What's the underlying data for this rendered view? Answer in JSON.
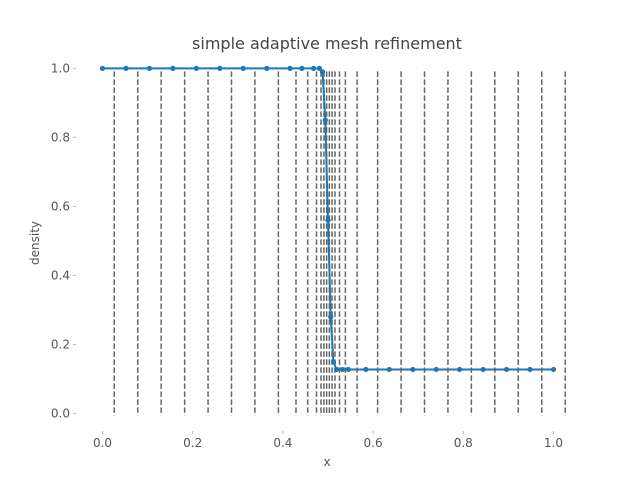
{
  "chart_data": {
    "type": "line",
    "title": "simple adaptive mesh refinement",
    "xlabel": "x",
    "ylabel": "density",
    "xlim": [
      -0.05,
      1.05
    ],
    "ylim": [
      -0.03,
      1.03
    ],
    "xticks": [
      0.0,
      0.2,
      0.4,
      0.6,
      0.8,
      1.0
    ],
    "xtick_labels": [
      "0.0",
      "0.2",
      "0.4",
      "0.6",
      "0.8",
      "1.0"
    ],
    "yticks": [
      0.0,
      0.2,
      0.4,
      0.6,
      0.8,
      1.0
    ],
    "ytick_labels": [
      "0.0",
      "0.2",
      "0.4",
      "0.6",
      "0.8",
      "1.0"
    ],
    "grid": false,
    "series": [
      {
        "color": "#1f77b4",
        "marker": "circle",
        "points": [
          [
            0.0,
            1.0
          ],
          [
            0.052,
            1.0
          ],
          [
            0.104,
            1.0
          ],
          [
            0.156,
            1.0
          ],
          [
            0.208,
            1.0
          ],
          [
            0.26,
            1.0
          ],
          [
            0.312,
            1.0
          ],
          [
            0.364,
            1.0
          ],
          [
            0.416,
            1.0
          ],
          [
            0.442,
            1.0
          ],
          [
            0.468,
            1.0
          ],
          [
            0.481,
            1.0
          ],
          [
            0.488,
            0.99
          ],
          [
            0.494,
            0.85
          ],
          [
            0.5,
            0.56
          ],
          [
            0.506,
            0.28
          ],
          [
            0.512,
            0.15
          ],
          [
            0.519,
            0.128
          ],
          [
            0.532,
            0.128
          ],
          [
            0.545,
            0.128
          ],
          [
            0.584,
            0.128
          ],
          [
            0.636,
            0.128
          ],
          [
            0.688,
            0.128
          ],
          [
            0.74,
            0.128
          ],
          [
            0.792,
            0.128
          ],
          [
            0.844,
            0.128
          ],
          [
            0.896,
            0.128
          ],
          [
            0.948,
            0.128
          ],
          [
            1.0,
            0.128
          ]
        ]
      }
    ],
    "vlines": {
      "color": "#666666",
      "style": "dashed",
      "x": [
        0.026,
        0.078,
        0.13,
        0.182,
        0.234,
        0.286,
        0.338,
        0.39,
        0.429,
        0.455,
        0.4745,
        0.4845,
        0.491,
        0.497,
        0.503,
        0.509,
        0.5155,
        0.5255,
        0.5385,
        0.5645,
        0.61,
        0.662,
        0.714,
        0.766,
        0.818,
        0.87,
        0.922,
        0.974,
        1.026
      ]
    }
  }
}
